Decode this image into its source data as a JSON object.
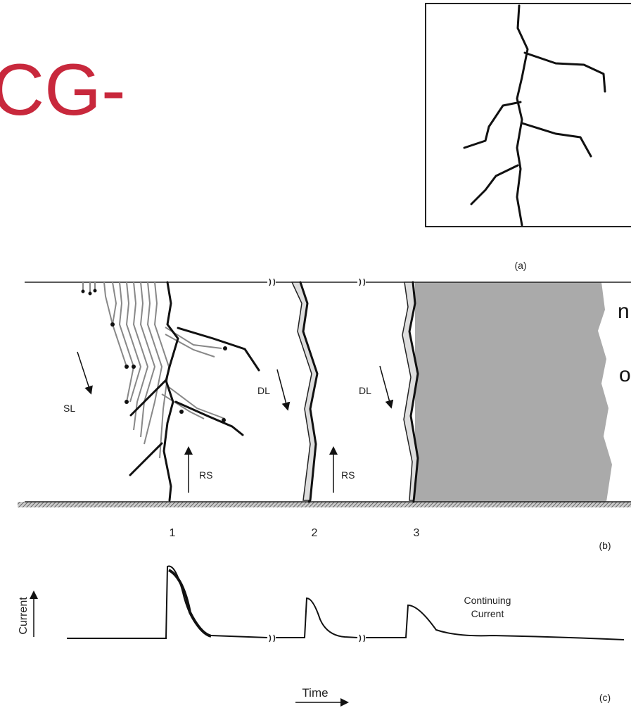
{
  "title": "CG-",
  "side_text": [
    "n",
    "o"
  ],
  "panel_a": {
    "label": "(a)"
  },
  "panel_b": {
    "label": "(b)",
    "annotations": {
      "sl": "SL",
      "dl_1": "DL",
      "rs_1": "RS",
      "dl_2": "DL",
      "rs_2": "RS"
    },
    "stroke_numbers": [
      "1",
      "2",
      "3"
    ]
  },
  "panel_c": {
    "label": "(c)",
    "y_label": "Current",
    "x_label": "Time",
    "annotation": [
      "Continuing",
      "Current"
    ]
  }
}
